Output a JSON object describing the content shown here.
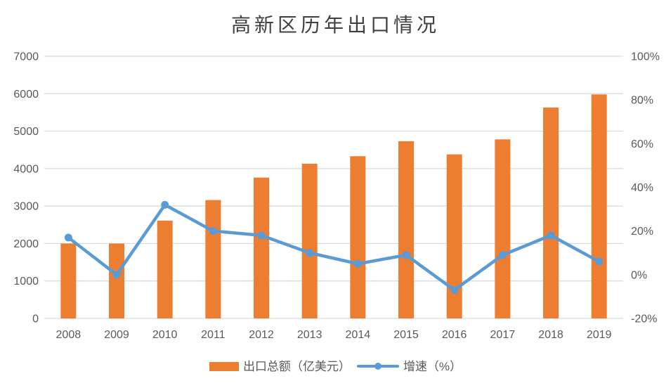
{
  "chart_data": {
    "type": "bar",
    "combo": "bar+line",
    "title": "高新区历年出口情况",
    "categories": [
      "2008",
      "2009",
      "2010",
      "2011",
      "2012",
      "2013",
      "2014",
      "2015",
      "2016",
      "2017",
      "2018",
      "2019"
    ],
    "series": [
      {
        "name": "出口总额（亿美元）",
        "type": "bar",
        "axis": "left",
        "color": "#ED7D31",
        "values": [
          2000,
          2000,
          2610,
          3160,
          3760,
          4130,
          4330,
          4730,
          4380,
          4780,
          5630,
          5980
        ]
      },
      {
        "name": "增速（%）",
        "type": "line",
        "axis": "right",
        "color": "#5B9BD5",
        "values": [
          17,
          0,
          32,
          20,
          18,
          10,
          5,
          9,
          -7,
          9,
          18,
          6
        ]
      }
    ],
    "left_axis": {
      "min": 0,
      "max": 7000,
      "step": 1000,
      "ticks": [
        "0",
        "1000",
        "2000",
        "3000",
        "4000",
        "5000",
        "6000",
        "7000"
      ]
    },
    "right_axis": {
      "min": -20,
      "max": 100,
      "step": 20,
      "ticks": [
        "-20%",
        "0%",
        "20%",
        "40%",
        "60%",
        "80%",
        "100%"
      ]
    },
    "grid": true,
    "legend_position": "bottom",
    "colors": {
      "grid": "#D9D9D9",
      "axis_text": "#595959",
      "title_text": "#404040",
      "background": "#FFFFFF"
    }
  }
}
